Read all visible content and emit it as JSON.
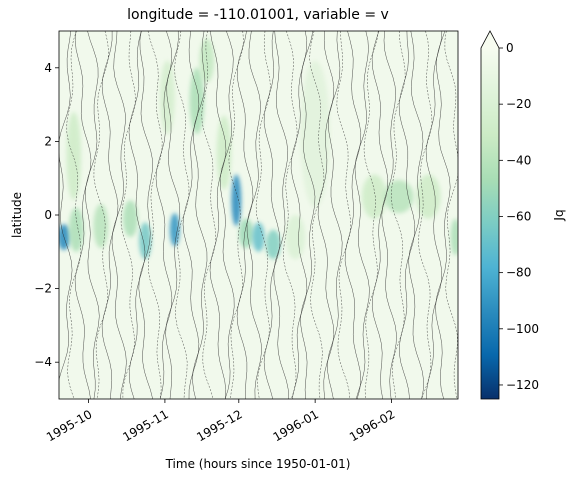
{
  "chart_data": {
    "type": "heatmap",
    "title": "longitude = -110.01001, variable = v",
    "xlabel": "Time (hours since 1950-01-01)",
    "ylabel": "latitude",
    "x_range": [
      "1995-09-19",
      "1996-02-28"
    ],
    "ylim": [
      -5,
      5
    ],
    "x_ticks": [
      {
        "date": "1995-10-01",
        "label": "1995-10"
      },
      {
        "date": "1995-11-01",
        "label": "1995-11"
      },
      {
        "date": "1995-12-01",
        "label": "1995-12"
      },
      {
        "date": "1996-01-01",
        "label": "1996-01"
      },
      {
        "date": "1996-02-01",
        "label": "1996-02"
      }
    ],
    "y_ticks": [
      -4,
      -2,
      0,
      2,
      4
    ],
    "colorbar": {
      "label": "Jq",
      "range": [
        -125,
        0
      ],
      "ticks": [
        0,
        -20,
        -40,
        -60,
        -80,
        -100,
        -120
      ],
      "extend": "max",
      "colormap": "GnBu_r",
      "colors": [
        "#08306b",
        "#0868ac",
        "#2b8cbe",
        "#4eb3d3",
        "#7bccc4",
        "#a8ddb5",
        "#ccebc5",
        "#e0f3db",
        "#f7fcf0"
      ]
    },
    "background_color": "#f1f9ec",
    "features": [
      {
        "date": "1995-09-21",
        "lat": -0.6,
        "value": -95,
        "dlat": 0.35,
        "ddays": 2.5
      },
      {
        "date": "1995-09-26",
        "lat": -0.4,
        "value": -45,
        "dlat": 0.6,
        "ddays": 3
      },
      {
        "date": "1995-09-25",
        "lat": 1.6,
        "value": -30,
        "dlat": 1.2,
        "ddays": 3
      },
      {
        "date": "1995-10-06",
        "lat": -0.3,
        "value": -40,
        "dlat": 0.6,
        "ddays": 3
      },
      {
        "date": "1995-10-18",
        "lat": -0.1,
        "value": -45,
        "dlat": 0.5,
        "ddays": 3
      },
      {
        "date": "1995-10-24",
        "lat": -0.7,
        "value": -65,
        "dlat": 0.5,
        "ddays": 2.5
      },
      {
        "date": "1995-11-05",
        "lat": -0.4,
        "value": -90,
        "dlat": 0.45,
        "ddays": 2
      },
      {
        "date": "1995-11-02",
        "lat": 3.2,
        "value": -25,
        "dlat": 1.0,
        "ddays": 3
      },
      {
        "date": "1995-11-14",
        "lat": 3.1,
        "value": -45,
        "dlat": 0.9,
        "ddays": 3
      },
      {
        "date": "1995-11-18",
        "lat": 4.2,
        "value": -35,
        "dlat": 0.6,
        "ddays": 3
      },
      {
        "date": "1995-11-25",
        "lat": 1.7,
        "value": -30,
        "dlat": 1.0,
        "ddays": 3
      },
      {
        "date": "1995-11-30",
        "lat": 0.4,
        "value": -95,
        "dlat": 0.7,
        "ddays": 2
      },
      {
        "date": "1995-12-04",
        "lat": -0.5,
        "value": -50,
        "dlat": 0.4,
        "ddays": 3
      },
      {
        "date": "1995-12-09",
        "lat": -0.6,
        "value": -70,
        "dlat": 0.4,
        "ddays": 2.5
      },
      {
        "date": "1995-12-15",
        "lat": -0.8,
        "value": -60,
        "dlat": 0.4,
        "ddays": 3
      },
      {
        "date": "1995-12-24",
        "lat": -0.6,
        "value": -20,
        "dlat": 0.6,
        "ddays": 4
      },
      {
        "date": "1996-01-01",
        "lat": 2.2,
        "value": -15,
        "dlat": 2.0,
        "ddays": 6
      },
      {
        "date": "1996-01-25",
        "lat": 0.5,
        "value": -30,
        "dlat": 0.6,
        "ddays": 5
      },
      {
        "date": "1996-02-04",
        "lat": 0.5,
        "value": -40,
        "dlat": 0.45,
        "ddays": 6
      },
      {
        "date": "1996-02-16",
        "lat": 0.5,
        "value": -30,
        "dlat": 0.6,
        "ddays": 5
      },
      {
        "date": "1996-02-27",
        "lat": -0.6,
        "value": -45,
        "dlat": 0.5,
        "ddays": 2
      }
    ]
  }
}
